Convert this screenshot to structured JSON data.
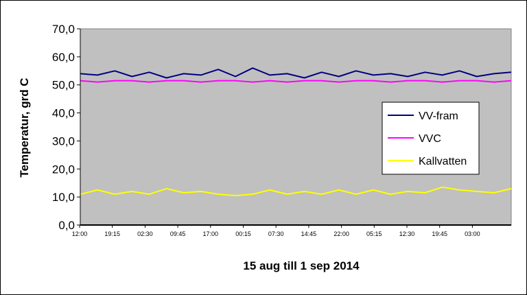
{
  "chart_data": {
    "type": "line",
    "title": "",
    "xlabel": "15 aug till 1 sep 2014",
    "ylabel": "Temperatur, grd C",
    "ylim": [
      0,
      70
    ],
    "yticks": [
      "0,0",
      "10,0",
      "20,0",
      "30,0",
      "40,0",
      "50,0",
      "60,0",
      "70,0"
    ],
    "grid": false,
    "plot_background": "#C0C0C0",
    "legend_position": "right-middle",
    "x_tick_labels": [
      "12:00",
      "19:15",
      "02:30",
      "09:45",
      "17:00",
      "00:15",
      "07:30",
      "14:45",
      "22:00",
      "05:15",
      "12:30",
      "19:45",
      "03:00"
    ],
    "x": [
      0,
      1,
      2,
      3,
      4,
      5,
      6,
      7,
      8,
      9,
      10,
      11,
      12,
      13,
      14,
      15,
      16,
      17,
      18,
      19,
      20,
      21,
      22,
      23,
      24,
      25
    ],
    "series": [
      {
        "name": "VV-fram",
        "color": "#000080",
        "values": [
          54.0,
          53.5,
          55.0,
          53.0,
          54.5,
          52.5,
          54.0,
          53.5,
          55.5,
          53.0,
          56.0,
          53.5,
          54.0,
          52.5,
          54.5,
          53.0,
          55.0,
          53.5,
          54.0,
          53.0,
          54.5,
          53.5,
          55.0,
          53.0,
          54.0,
          54.5
        ]
      },
      {
        "name": "VVC",
        "color": "#FF00FF",
        "values": [
          51.5,
          51.0,
          51.5,
          51.5,
          51.0,
          51.5,
          51.5,
          51.0,
          51.5,
          51.5,
          51.0,
          51.5,
          51.0,
          51.5,
          51.5,
          51.0,
          51.5,
          51.5,
          51.0,
          51.5,
          51.5,
          51.0,
          51.5,
          51.5,
          51.0,
          51.5
        ]
      },
      {
        "name": "Kallvatten",
        "color": "#FFFF00",
        "values": [
          11.0,
          12.5,
          11.0,
          12.0,
          11.0,
          13.0,
          11.5,
          12.0,
          11.0,
          10.5,
          11.0,
          12.5,
          11.0,
          12.0,
          11.0,
          12.5,
          11.0,
          12.5,
          11.0,
          12.0,
          11.5,
          13.5,
          12.5,
          12.0,
          11.5,
          13.0
        ]
      }
    ]
  }
}
